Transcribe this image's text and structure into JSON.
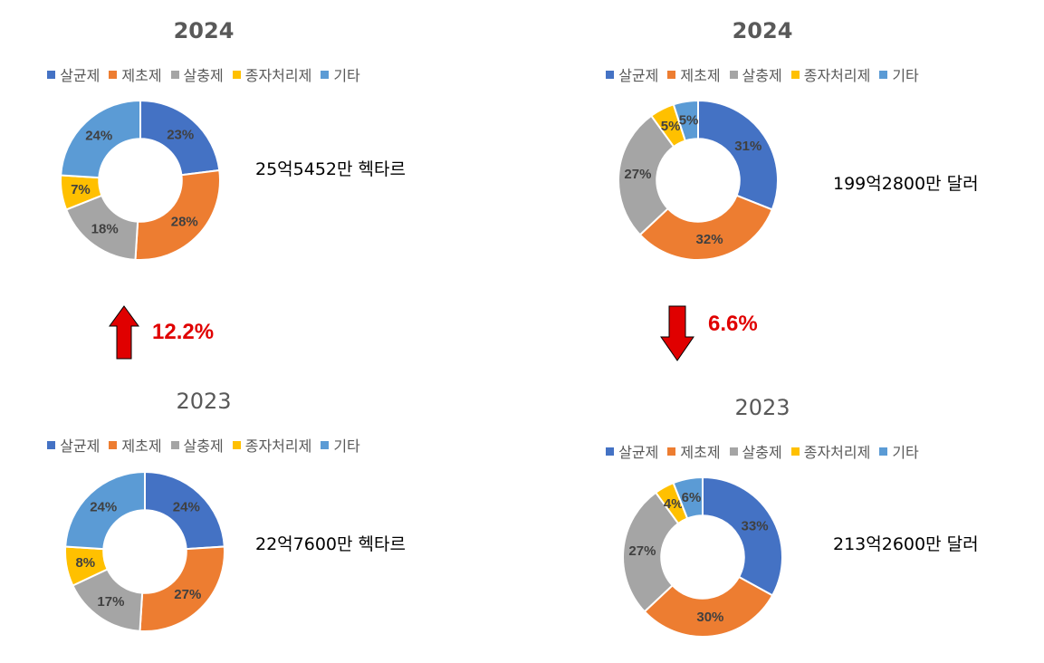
{
  "colors": {
    "살균제": "#4472C4",
    "제초제": "#ED7D31",
    "살충제": "#A5A5A5",
    "종자처리제": "#FFC000",
    "기타": "#5B9BD5",
    "change": "#E00000"
  },
  "chart_data": [
    {
      "type": "pie",
      "title": "2024",
      "categories": [
        "살균제",
        "제초제",
        "살충제",
        "종자처리제",
        "기타"
      ],
      "values": [
        23,
        28,
        18,
        7,
        24
      ],
      "labels": [
        "23%",
        "28%",
        "18%",
        "7%",
        "24%"
      ],
      "legend": "top"
    },
    {
      "type": "pie",
      "title": "2024",
      "categories": [
        "살균제",
        "제초제",
        "살충제",
        "종자처리제",
        "기타"
      ],
      "values": [
        31,
        32,
        27,
        5,
        5
      ],
      "labels": [
        "31%",
        "32%",
        "27%",
        "5%",
        "5%"
      ],
      "legend": "top"
    },
    {
      "type": "pie",
      "title": "2023",
      "categories": [
        "살균제",
        "제초제",
        "살충제",
        "종자처리제",
        "기타"
      ],
      "values": [
        24,
        27,
        17,
        8,
        24
      ],
      "labels": [
        "24%",
        "27%",
        "17%",
        "8%",
        "24%"
      ],
      "legend": "top"
    },
    {
      "type": "pie",
      "title": "2023",
      "categories": [
        "살균제",
        "제초제",
        "살충제",
        "종자처리제",
        "기타"
      ],
      "values": [
        33,
        30,
        27,
        4,
        6
      ],
      "labels": [
        "33%",
        "30%",
        "27%",
        "4%",
        "6%"
      ],
      "legend": "top"
    }
  ],
  "notes": {
    "area_2024": "25억5452만 헥타르",
    "sales_2024": "199억2800만 달러",
    "area_2023": "22억7600만 헥타르",
    "sales_2023": "213억2600만 달러"
  },
  "changes": {
    "area": {
      "direction": "up",
      "text": "12.2%"
    },
    "sales": {
      "direction": "down",
      "text": "6.6%"
    }
  }
}
